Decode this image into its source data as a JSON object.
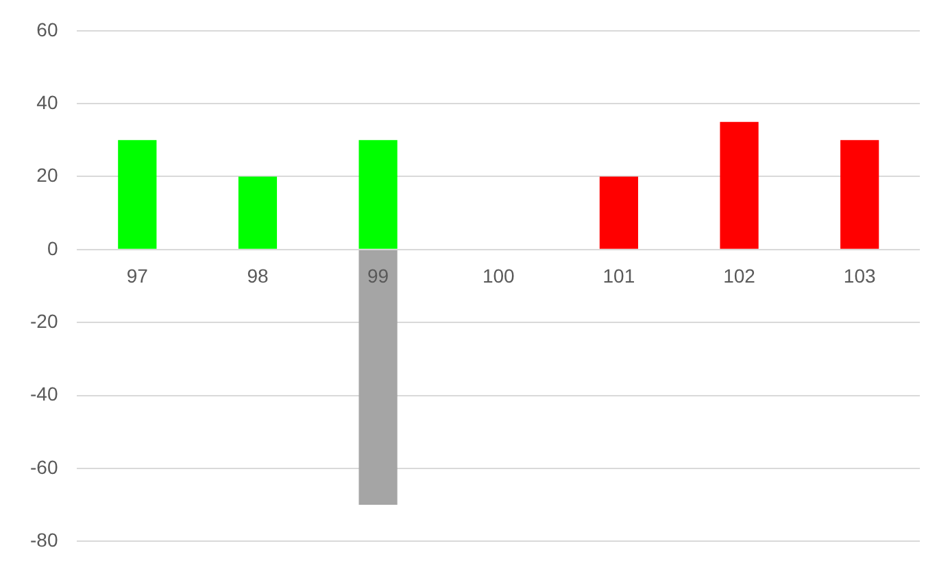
{
  "chart_data": {
    "type": "bar",
    "stacked": true,
    "categories": [
      "97",
      "98",
      "99",
      "100",
      "101",
      "102",
      "103"
    ],
    "series": [
      {
        "color": "#00ff00",
        "values": [
          30,
          20,
          30,
          null,
          null,
          null,
          null
        ]
      },
      {
        "color": "#a5a5a5",
        "values": [
          null,
          null,
          -70,
          null,
          null,
          null,
          null
        ]
      },
      {
        "color": "#ff0000",
        "values": [
          null,
          null,
          null,
          null,
          20,
          35,
          30
        ]
      }
    ],
    "ylim": [
      -80,
      60
    ],
    "yticks": [
      -80,
      -60,
      -40,
      -20,
      0,
      20,
      40,
      60
    ],
    "grid": "y",
    "legend": false
  }
}
